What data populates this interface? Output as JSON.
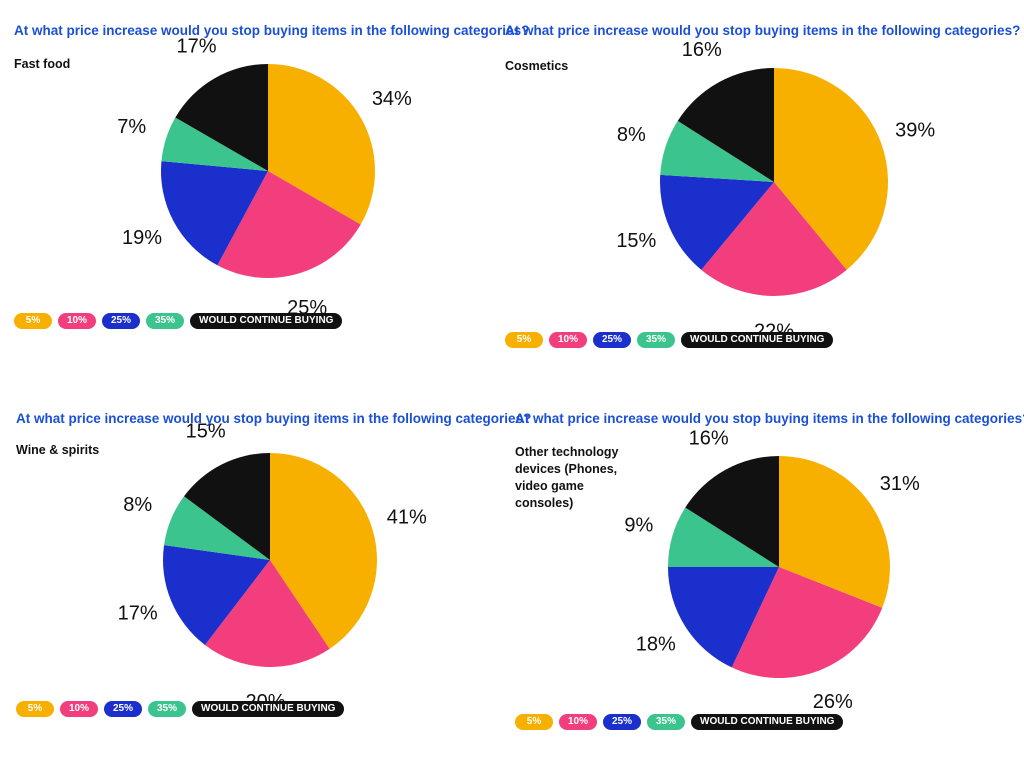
{
  "colors": {
    "p5": "#f7b000",
    "p10": "#f23e7d",
    "p25": "#1a2fcc",
    "p35": "#3cc48f",
    "continue": "#111111"
  },
  "legend": [
    {
      "label": "5%",
      "color": "#f7b000"
    },
    {
      "label": "10%",
      "color": "#f23e7d"
    },
    {
      "label": "25%",
      "color": "#1a2fcc"
    },
    {
      "label": "35%",
      "color": "#3cc48f"
    },
    {
      "label": "WOULD CONTINUE BUYING",
      "color": "#111111"
    }
  ],
  "chart_data": [
    {
      "type": "pie",
      "title": "At what price increase would you stop buying items in the following categories?",
      "subtitle": "Fast food",
      "categories": [
        "5%",
        "10%",
        "25%",
        "35%",
        "WOULD CONTINUE BUYING"
      ],
      "values": [
        34,
        25,
        19,
        7,
        17
      ],
      "labels": [
        "34%",
        "25%",
        "19%",
        "7%",
        "17%"
      ]
    },
    {
      "type": "pie",
      "title": "At what price increase would you stop buying items in the following categories?",
      "subtitle": "Cosmetics",
      "categories": [
        "5%",
        "10%",
        "25%",
        "35%",
        "WOULD CONTINUE BUYING"
      ],
      "values": [
        39,
        22,
        15,
        8,
        16
      ],
      "labels": [
        "39%",
        "22%",
        "15%",
        "8%",
        "16%"
      ]
    },
    {
      "type": "pie",
      "title": "At what price increase would you stop buying items in the following categories?",
      "subtitle": "Wine & spirits",
      "categories": [
        "5%",
        "10%",
        "25%",
        "35%",
        "WOULD CONTINUE BUYING"
      ],
      "values": [
        41,
        20,
        17,
        8,
        15
      ],
      "labels": [
        "41%",
        "20%",
        "17%",
        "8%",
        "15%"
      ]
    },
    {
      "type": "pie",
      "title": "At what price increase would you stop buying items in the following categories?",
      "subtitle": "Other technology devices (Phones, video game consoles)",
      "categories": [
        "5%",
        "10%",
        "25%",
        "35%",
        "WOULD CONTINUE BUYING"
      ],
      "values": [
        31,
        26,
        18,
        9,
        16
      ],
      "labels": [
        "31%",
        "26%",
        "18%",
        "9%",
        "16%"
      ]
    }
  ]
}
